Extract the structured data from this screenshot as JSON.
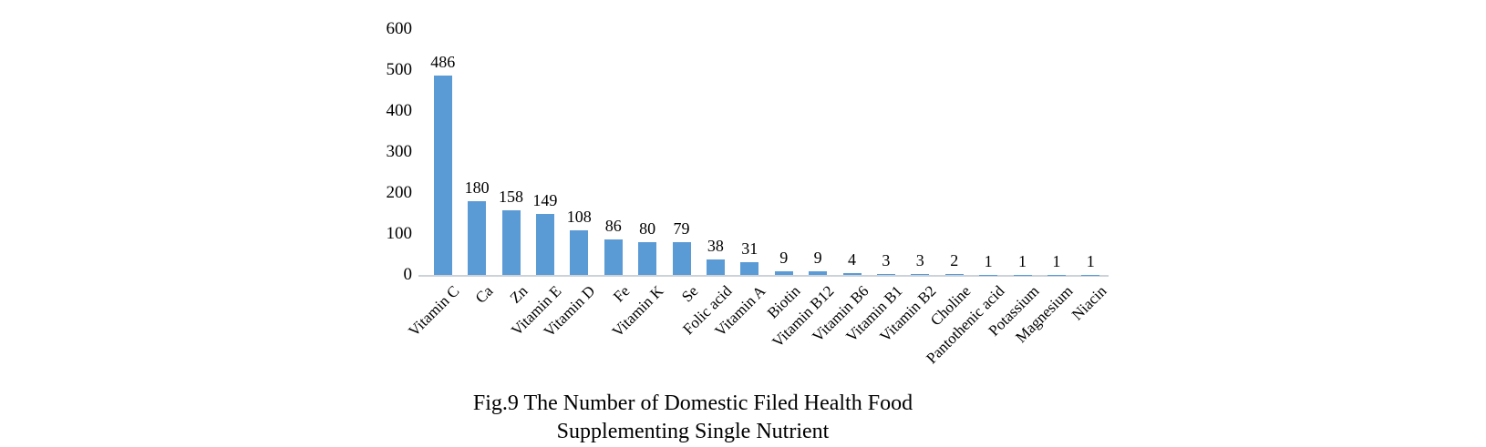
{
  "figure": {
    "caption_line1": "Fig.9 The Number of Domestic Filed Health Food",
    "caption_line2": "Supplementing Single Nutrient"
  },
  "chart_data": {
    "type": "bar",
    "title": "Fig.9 The Number of Domestic Filed Health Food Supplementing Single Nutrient",
    "categories": [
      "Vitamin C",
      "Ca",
      "Zn",
      "Vitamin E",
      "Vitamin D",
      "Fe",
      "Vitamin K",
      "Se",
      "Folic acid",
      "Vitamin A",
      "Biotin",
      "Vitamin B12",
      "Vitamin B6",
      "Vitamin B1",
      "Vitamin B2",
      "Choline",
      "Pantothenic acid",
      "Potassium",
      "Magnesium",
      "Niacin"
    ],
    "values": [
      486,
      180,
      158,
      149,
      108,
      86,
      80,
      79,
      38,
      31,
      9,
      9,
      4,
      3,
      3,
      2,
      1,
      1,
      1,
      1
    ],
    "data_labels": [
      486,
      180,
      158,
      149,
      108,
      86,
      80,
      79,
      38,
      31,
      9,
      9,
      4,
      3,
      3,
      2,
      1,
      1,
      1,
      1
    ],
    "xlabel": "",
    "ylabel": "",
    "ylim": [
      0,
      600
    ],
    "yticks": [
      0,
      100,
      200,
      300,
      400,
      500,
      600
    ],
    "bar_color": "#5b9bd5",
    "axis_line_color": "#ccd2da",
    "grid": false,
    "legend": false,
    "x_label_rotation_deg": -45
  }
}
